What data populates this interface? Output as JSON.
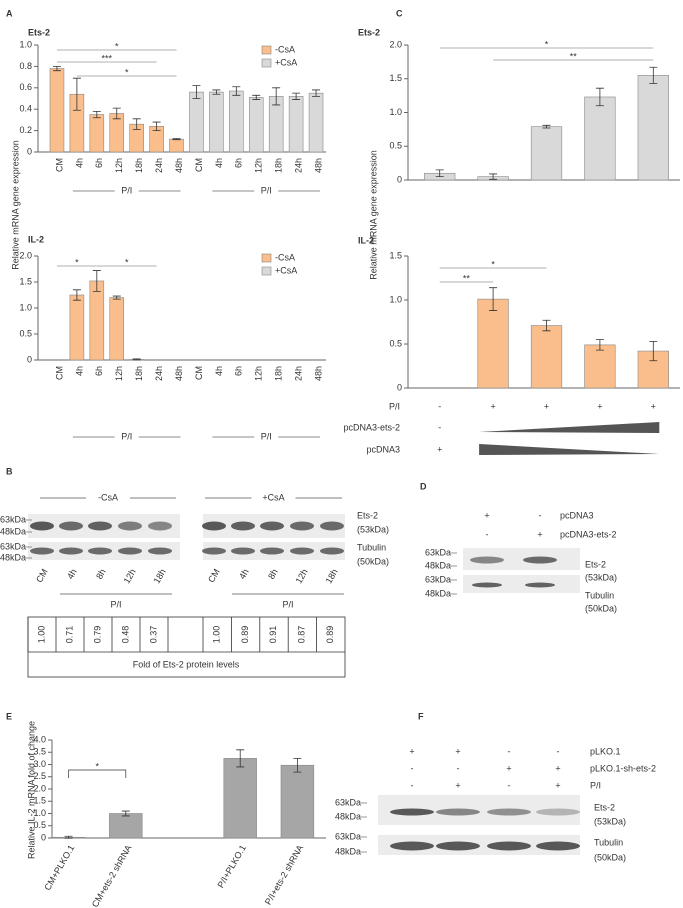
{
  "panel_labels": [
    "A",
    "B",
    "C",
    "D",
    "E",
    "F"
  ],
  "chart_data": [
    {
      "type": "bar",
      "title": "Ets-2",
      "ylabel": "Relative mRNA gene expression",
      "categories": [
        "CM",
        "4h",
        "6h",
        "12h",
        "18h",
        "24h",
        "48h",
        "CM",
        "4h",
        "6h",
        "12h",
        "18h",
        "24h",
        "48h"
      ],
      "series": [
        {
          "name": "-CsA",
          "color": "#f9be8c",
          "values": [
            0.78,
            0.54,
            0.35,
            0.36,
            0.26,
            0.24,
            0.12,
            null,
            null,
            null,
            null,
            null,
            null,
            null
          ],
          "errors": [
            0.02,
            0.15,
            0.03,
            0.05,
            0.05,
            0.04,
            0.005,
            null,
            null,
            null,
            null,
            null,
            null,
            null
          ]
        },
        {
          "name": "+CsA",
          "color": "#d9d9d9",
          "values": [
            null,
            null,
            null,
            null,
            null,
            null,
            null,
            0.56,
            0.56,
            0.57,
            0.51,
            0.52,
            0.52,
            0.55
          ],
          "errors": [
            null,
            null,
            null,
            null,
            null,
            null,
            null,
            0.06,
            0.02,
            0.04,
            0.02,
            0.08,
            0.03,
            0.03
          ]
        }
      ],
      "ylim": [
        0,
        1
      ],
      "yticks": [
        0,
        0.2,
        0.4,
        0.6,
        0.8,
        {
          "value": 1,
          "label": "1.0"
        }
      ],
      "legend": true,
      "annotations": [
        "*",
        "***",
        "*"
      ],
      "group_labels": [
        "P/I",
        "P/I"
      ]
    },
    {
      "type": "bar",
      "title": "IL-2",
      "categories": [
        "CM",
        "4h",
        "6h",
        "12h",
        "18h",
        "24h",
        "48h",
        "CM",
        "4h",
        "6h",
        "12h",
        "18h",
        "24h",
        "48h"
      ],
      "series": [
        {
          "name": "-CsA",
          "color": "#f9be8c",
          "values": [
            0,
            1.25,
            1.52,
            1.2,
            0.01,
            0,
            0,
            null,
            null,
            null,
            null,
            null,
            null,
            null
          ],
          "errors": [
            null,
            0.1,
            0.2,
            0.03,
            0.01,
            null,
            null,
            null,
            null,
            null,
            null,
            null,
            null,
            null
          ]
        },
        {
          "name": "+CsA",
          "color": "#d9d9d9",
          "values": [
            null,
            null,
            null,
            null,
            null,
            null,
            null,
            0,
            0,
            0,
            0,
            0,
            0,
            0
          ]
        }
      ],
      "ylim": [
        0,
        2
      ],
      "yticks": [
        0,
        0.5,
        {
          "value": 1,
          "label": "1.0"
        },
        1.5,
        {
          "value": 2,
          "label": "2.0"
        }
      ],
      "legend": true,
      "annotations": [
        "*",
        "*"
      ],
      "group_labels": [
        "P/I",
        "P/I"
      ]
    },
    {
      "type": "bar",
      "title": "Ets-2",
      "ylabel": "Relative mRNA gene expression",
      "series": [
        {
          "color": "#d9d9d9",
          "values": [
            0.1,
            0.05,
            0.79,
            1.23,
            1.55
          ],
          "errors": [
            0.05,
            0.04,
            0.02,
            0.13,
            0.12
          ]
        }
      ],
      "ylim": [
        0,
        2
      ],
      "yticks": [
        0,
        0.5,
        {
          "value": 1,
          "label": "1.0"
        },
        1.5,
        {
          "value": 2,
          "label": "2.0"
        }
      ],
      "annotations": [
        "*",
        "**"
      ]
    },
    {
      "type": "bar",
      "title": "IL-2",
      "series": [
        {
          "color": "#f9be8c",
          "values": [
            0,
            1.01,
            0.71,
            0.49,
            0.42
          ],
          "errors": [
            null,
            0.13,
            0.06,
            0.06,
            0.11
          ]
        }
      ],
      "ylim": [
        0,
        1.5
      ],
      "yticks": [
        0,
        0.5,
        {
          "value": 1,
          "label": "1.0"
        },
        1.5
      ],
      "annotations": [
        "*",
        "**"
      ],
      "conditions": [
        {
          "name": "P/I",
          "signs": [
            "-",
            "+",
            "+",
            "+",
            "+"
          ]
        },
        {
          "name": "pcDNA3-ets-2",
          "signs": [
            "-"
          ]
        },
        {
          "name": "pcDNA3",
          "signs": [
            "+"
          ]
        }
      ]
    },
    {
      "type": "bar",
      "ylabel": "Relative IL-2 mRNA fold of change",
      "categories": [
        "CM+PLKO.1",
        "CM+ets-2 shRNA",
        null,
        "P/I+PLKO.1",
        "P/I+ets-2 shRNA"
      ],
      "series": [
        {
          "color": "#a6a6a6",
          "values": [
            0.03,
            1.0,
            null,
            3.25,
            2.97
          ],
          "errors": [
            0.04,
            0.1,
            null,
            0.35,
            0.28
          ]
        }
      ],
      "ylim": [
        0,
        4
      ],
      "yticks": [
        0,
        0.5,
        {
          "value": 1,
          "label": "1.0"
        },
        1.5,
        {
          "value": 2,
          "label": "2.0"
        },
        2.5,
        {
          "value": 3,
          "label": "3.0"
        },
        3.5,
        {
          "value": 4,
          "label": "4.0"
        }
      ],
      "annotations": [
        "*"
      ]
    }
  ],
  "blot_B": {
    "groups": [
      "-CsA",
      "+CsA"
    ],
    "lanes": [
      "CM",
      "4h",
      "8h",
      "12h",
      "18h",
      "CM",
      "4h",
      "8h",
      "12h",
      "18h"
    ],
    "treatment": [
      "P/I",
      "P/I"
    ],
    "markers": [
      "63kDa",
      "48kDa",
      "63kDa",
      "48kDa"
    ],
    "bands": [
      {
        "name": "Ets-2",
        "size": "(53kDa)"
      },
      {
        "name": "Tubulin",
        "size": "(50kDa)"
      }
    ],
    "quantification": {
      "values": [
        "1.00",
        "0.71",
        "0.79",
        "0.48",
        "0.37",
        "1.00",
        "0.89",
        "0.91",
        "0.87",
        "0.89"
      ],
      "caption": "Fold of Ets-2 protein levels"
    }
  },
  "blot_D": {
    "conditions": [
      {
        "name": "pcDNA3",
        "signs": [
          "+",
          "-"
        ]
      },
      {
        "name": "pcDNA3-ets-2",
        "signs": [
          "-",
          "+"
        ]
      }
    ],
    "markers": [
      "63kDa",
      "48kDa",
      "63kDa",
      "48kDa"
    ],
    "bands": [
      {
        "name": "Ets-2",
        "size": "(53kDa)"
      },
      {
        "name": "Tubulin",
        "size": "(50kDa)"
      }
    ]
  },
  "blot_F": {
    "conditions": [
      {
        "name": "pLKO.1",
        "signs": [
          "+",
          "+",
          "-",
          "-"
        ]
      },
      {
        "name": "pLKO.1-sh-ets-2",
        "signs": [
          "-",
          "-",
          "+",
          "+"
        ]
      },
      {
        "name": "P/I",
        "signs": [
          "-",
          "+",
          "-",
          "+"
        ]
      }
    ],
    "markers": [
      "63kDa",
      "48kDa",
      "63kDa",
      "48kDa"
    ],
    "bands": [
      {
        "name": "Ets-2",
        "size": "(53kDa)"
      },
      {
        "name": "Tubulin",
        "size": "(50kDa)"
      }
    ]
  }
}
